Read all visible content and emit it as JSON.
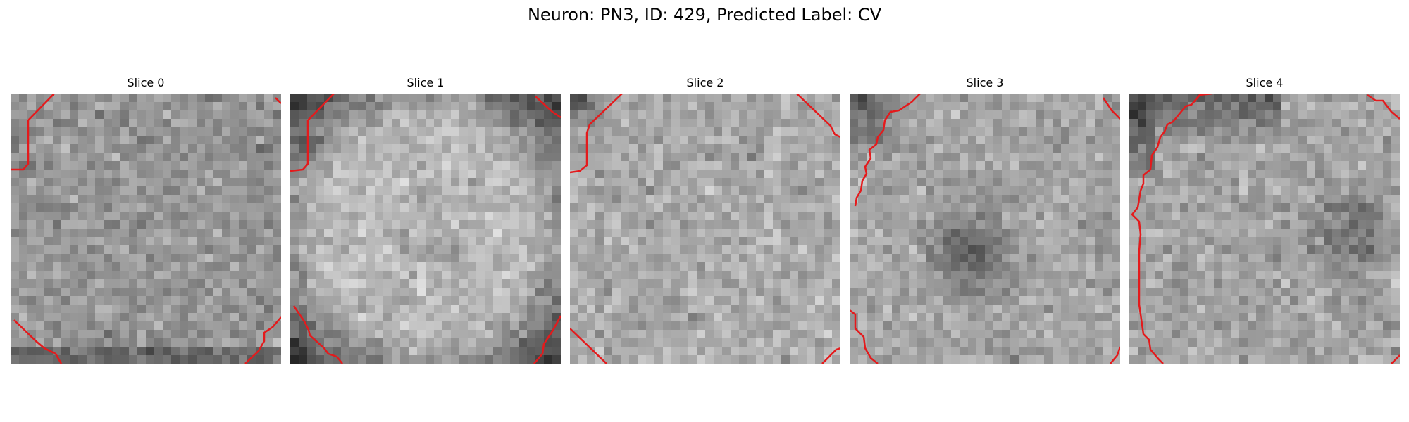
{
  "figure": {
    "title": "Neuron: PN3, ID: 429, Predicted Label: CV"
  },
  "slices": [
    {
      "title": "Slice 0"
    },
    {
      "title": "Slice 1"
    },
    {
      "title": "Slice 2"
    },
    {
      "title": "Slice 3"
    },
    {
      "title": "Slice 4"
    }
  ],
  "colors": {
    "contour": "#e41a1c",
    "background": "#ffffff"
  }
}
